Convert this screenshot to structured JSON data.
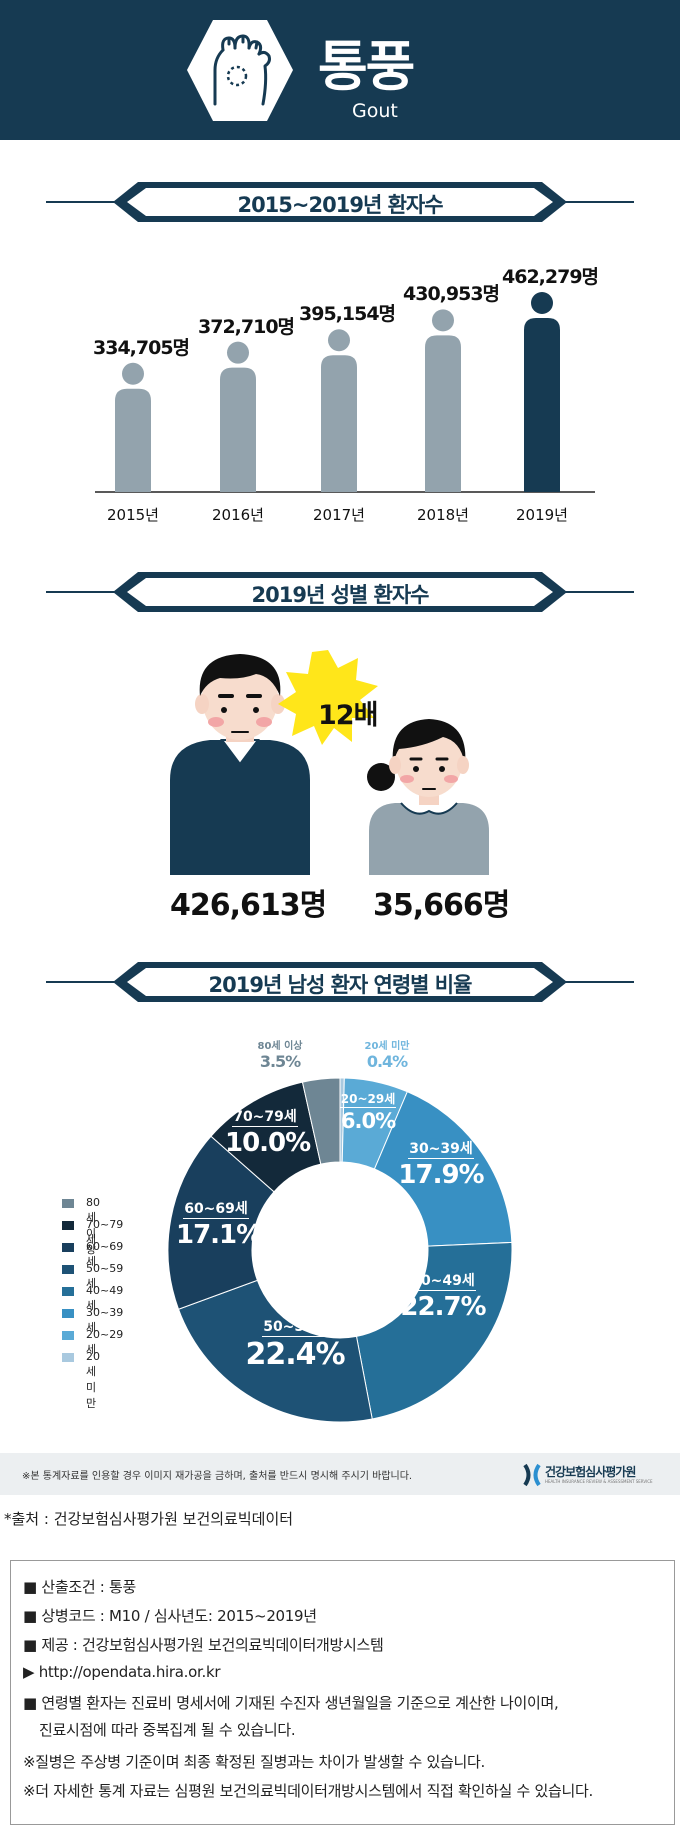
{
  "header": {
    "title": "통풍",
    "subtitle": "Gout"
  },
  "sections": {
    "yearly_title": "2015~2019년 환자수",
    "gender_title": "2019년 성별 환자수",
    "age_title": "2019년 남성 환자 연령별 비율"
  },
  "colors": {
    "navy": "#163a52",
    "gray_figure": "#93a3ad",
    "yellow_burst": "#ffe61a"
  },
  "yearly": {
    "years": [
      "2015년",
      "2016년",
      "2017년",
      "2018년",
      "2019년"
    ],
    "labels": [
      "334,705명",
      "372,710명",
      "395,154명",
      "430,953명",
      "462,279명"
    ]
  },
  "gender": {
    "male": "426,613명",
    "female": "35,666명",
    "ratio": "12배"
  },
  "donut": {
    "labels": [
      {
        "age": "20세 미만",
        "pct": "0.4%"
      },
      {
        "age": "20~29세",
        "pct": "6.0%"
      },
      {
        "age": "30~39세",
        "pct": "17.9%"
      },
      {
        "age": "40~49세",
        "pct": "22.7%"
      },
      {
        "age": "50~59세",
        "pct": "22.4%"
      },
      {
        "age": "60~69세",
        "pct": "17.1%"
      },
      {
        "age": "70~79세",
        "pct": "10.0%"
      },
      {
        "age": "80세 이상",
        "pct": "3.5%"
      }
    ]
  },
  "legend": [
    "80세 이상",
    "70~79세",
    "60~69세",
    "50~59세",
    "40~49세",
    "30~39세",
    "20~29세",
    "20세 미만"
  ],
  "chart_data": [
    {
      "type": "bar",
      "title": "2015~2019년 환자수",
      "categories": [
        "2015년",
        "2016년",
        "2017년",
        "2018년",
        "2019년"
      ],
      "values": [
        334705,
        372710,
        395154,
        430953,
        462279
      ],
      "unit": "명",
      "colors": [
        "#93a3ad",
        "#93a3ad",
        "#93a3ad",
        "#93a3ad",
        "#163a52"
      ]
    },
    {
      "type": "bar",
      "title": "2019년 성별 환자수",
      "categories": [
        "남성",
        "여성"
      ],
      "values": [
        426613,
        35666
      ],
      "unit": "명",
      "annotation": "12배"
    },
    {
      "type": "pie",
      "title": "2019년 남성 환자 연령별 비율",
      "categories": [
        "20세 미만",
        "20~29세",
        "30~39세",
        "40~49세",
        "50~59세",
        "60~69세",
        "70~79세",
        "80세 이상"
      ],
      "values": [
        0.4,
        6.0,
        17.9,
        22.7,
        22.4,
        17.1,
        10.0,
        3.5
      ],
      "unit": "%",
      "colors": [
        "#a9c9df",
        "#5aaad6",
        "#3890c3",
        "#256f98",
        "#1e5275",
        "#193f5d",
        "#13293a",
        "#6e8694"
      ],
      "legend": "left"
    }
  ],
  "footer": {
    "notice": "※본 통계자료를 인용할 경우 이미지 재가공을 금하며, 출처를 반드시 명시해 주시기 바랍니다.",
    "org_name": "건강보험심사평가원",
    "org_sub": "HEALTH INSURANCE REVIEW & ASSESSMENT SERVICE",
    "source": "*출처 : 건강보험심사평가원 보건의료빅데이터",
    "info_lines": [
      "■ 산출조건 : 통풍",
      "■ 상병코드 : M10 / 심사년도: 2015~2019년",
      "■ 제공 : 건강보험심사평가원 보건의료빅데이터개방시스템",
      "▶ http://opendata.hira.or.kr",
      "■ 연령별 환자는 진료비 명세서에 기재된 수진자 생년월일을 기준으로 계산한 나이이며,",
      "진료시점에 따라 중복집계 될 수 있습니다.",
      "※질병은 주상병 기준이며 최종 확정된 질병과는 차이가 발생할 수 있습니다.",
      "※더 자세한 통계 자료는 심평원 보건의료빅데이터개방시스템에서 직접 확인하실 수 있습니다."
    ]
  }
}
